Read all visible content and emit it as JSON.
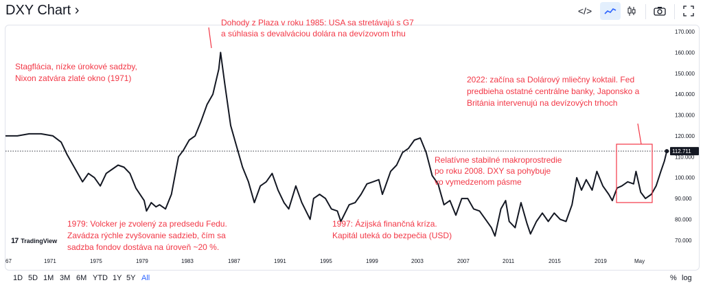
{
  "header": {
    "title": "DXY Chart ›",
    "embed_icon": "</>",
    "line_icon": "line-chart-icon",
    "candle_icon": "candle-chart-icon",
    "snapshot_icon": "camera-icon",
    "fullscreen_icon": "fullscreen-icon"
  },
  "timeframes": [
    "1D",
    "5D",
    "1M",
    "3M",
    "6M",
    "YTD",
    "1Y",
    "5Y",
    "All"
  ],
  "active_timeframe": "All",
  "bottom_right": {
    "percent": "%",
    "log": "log"
  },
  "logo": {
    "mark": "17",
    "text": "TradingView"
  },
  "colors": {
    "line": "#131722",
    "annotation": "#f23645",
    "accent": "#2962ff",
    "grid": "#e0e3eb"
  },
  "chart_data": {
    "type": "line",
    "title": "DXY",
    "last_value": "112.711",
    "y_ticks": [
      "170.000",
      "160.000",
      "150.000",
      "140.000",
      "130.000",
      "120.000",
      "110.000",
      "100.000",
      "90.000",
      "80.000",
      "70.000"
    ],
    "ylim": [
      65,
      172
    ],
    "x_ticks": [
      "67",
      "1971",
      "1975",
      "1979",
      "1983",
      "1987",
      "1991",
      "1995",
      "1999",
      "2003",
      "2007",
      "2011",
      "2015",
      "2019",
      "May"
    ],
    "xlim": [
      1967.0,
      2022.9
    ],
    "series": [
      {
        "name": "DXY",
        "points": [
          [
            1967.0,
            120
          ],
          [
            1968.0,
            120
          ],
          [
            1969.0,
            121
          ],
          [
            1970.0,
            121
          ],
          [
            1971.0,
            120
          ],
          [
            1971.7,
            117
          ],
          [
            1972.2,
            111
          ],
          [
            1973.0,
            103
          ],
          [
            1973.5,
            98
          ],
          [
            1974.0,
            102
          ],
          [
            1974.5,
            100
          ],
          [
            1975.0,
            96
          ],
          [
            1975.5,
            102
          ],
          [
            1976.0,
            104
          ],
          [
            1976.5,
            106
          ],
          [
            1977.0,
            105
          ],
          [
            1977.5,
            102
          ],
          [
            1978.0,
            95
          ],
          [
            1978.7,
            89
          ],
          [
            1978.9,
            84
          ],
          [
            1979.3,
            88
          ],
          [
            1979.7,
            86
          ],
          [
            1980.0,
            87
          ],
          [
            1980.5,
            85
          ],
          [
            1981.0,
            92
          ],
          [
            1981.6,
            110
          ],
          [
            1982.0,
            113
          ],
          [
            1982.5,
            118
          ],
          [
            1983.0,
            120
          ],
          [
            1983.5,
            127
          ],
          [
            1984.0,
            135
          ],
          [
            1984.5,
            140
          ],
          [
            1985.0,
            152
          ],
          [
            1985.15,
            160
          ],
          [
            1985.5,
            145
          ],
          [
            1986.0,
            125
          ],
          [
            1986.5,
            115
          ],
          [
            1987.0,
            105
          ],
          [
            1987.5,
            98
          ],
          [
            1988.0,
            88
          ],
          [
            1988.5,
            96
          ],
          [
            1989.0,
            98
          ],
          [
            1989.5,
            102
          ],
          [
            1990.0,
            94
          ],
          [
            1990.5,
            88
          ],
          [
            1990.9,
            85
          ],
          [
            1991.5,
            96
          ],
          [
            1992.0,
            88
          ],
          [
            1992.7,
            80
          ],
          [
            1993.0,
            90
          ],
          [
            1993.5,
            92
          ],
          [
            1994.0,
            90
          ],
          [
            1994.5,
            85
          ],
          [
            1995.0,
            84
          ],
          [
            1995.3,
            79
          ],
          [
            1996.0,
            87
          ],
          [
            1996.5,
            88
          ],
          [
            1997.0,
            92
          ],
          [
            1997.5,
            97
          ],
          [
            1998.0,
            98
          ],
          [
            1998.5,
            99
          ],
          [
            1998.8,
            92
          ],
          [
            1999.0,
            95
          ],
          [
            1999.5,
            103
          ],
          [
            2000.0,
            106
          ],
          [
            2000.5,
            112
          ],
          [
            2001.0,
            114
          ],
          [
            2001.5,
            118
          ],
          [
            2002.0,
            119
          ],
          [
            2002.5,
            112
          ],
          [
            2003.0,
            101
          ],
          [
            2003.5,
            97
          ],
          [
            2004.0,
            87
          ],
          [
            2004.5,
            89
          ],
          [
            2005.0,
            82
          ],
          [
            2005.5,
            90
          ],
          [
            2006.0,
            90
          ],
          [
            2006.5,
            85
          ],
          [
            2007.0,
            84
          ],
          [
            2007.5,
            80
          ],
          [
            2008.0,
            76
          ],
          [
            2008.3,
            72
          ],
          [
            2008.8,
            85
          ],
          [
            2009.2,
            89
          ],
          [
            2009.5,
            79
          ],
          [
            2010.0,
            76
          ],
          [
            2010.5,
            88
          ],
          [
            2011.0,
            78
          ],
          [
            2011.3,
            73
          ],
          [
            2011.8,
            79
          ],
          [
            2012.3,
            83
          ],
          [
            2012.8,
            79
          ],
          [
            2013.3,
            83
          ],
          [
            2013.8,
            80
          ],
          [
            2014.3,
            79
          ],
          [
            2014.8,
            87
          ],
          [
            2015.2,
            100
          ],
          [
            2015.6,
            94
          ],
          [
            2016.0,
            99
          ],
          [
            2016.5,
            94
          ],
          [
            2016.9,
            103
          ],
          [
            2017.4,
            96
          ],
          [
            2017.9,
            92
          ],
          [
            2018.2,
            89
          ],
          [
            2018.6,
            95
          ],
          [
            2019.0,
            96
          ],
          [
            2019.5,
            98
          ],
          [
            2020.0,
            97
          ],
          [
            2020.2,
            103
          ],
          [
            2020.6,
            93
          ],
          [
            2021.0,
            90
          ],
          [
            2021.5,
            92
          ],
          [
            2021.9,
            96
          ],
          [
            2022.3,
            103
          ],
          [
            2022.6,
            108
          ],
          [
            2022.8,
            112.7
          ]
        ]
      }
    ],
    "annotations": [
      {
        "lines": [
          "Dohody z Plaza v roku 1985: USA sa stretávajú s G7",
          "a súhlasia s devalváciou dolára na devízovom trhu"
        ]
      },
      {
        "lines": [
          "Stagflácia, nízke úrokové sadzby,",
          "Nixon zatvára zlaté okno (1971)"
        ]
      },
      {
        "lines": [
          "2022: začína sa Dolárový mliečny koktail. Fed",
          "predbieha ostatné centrálne banky, Japonsko a",
          "Británia intervenujú na devízových trhoch"
        ]
      },
      {
        "lines": [
          "Relatívne stabilné makroprostredie",
          "po roku 2008. DXY sa pohybuje",
          "vo vymedzenom pásme"
        ]
      },
      {
        "lines": [
          "1979: Volcker je zvolený za predsedu Fedu.",
          "Zavádza rýchle zvyšovanie sadzieb, čím sa",
          "sadzba fondov dostáva na úroveň ~20 %."
        ]
      },
      {
        "lines": [
          "1997: Ázijská finančná kríza.",
          "Kapitál uteká do bezpečia (USD)"
        ]
      }
    ]
  }
}
